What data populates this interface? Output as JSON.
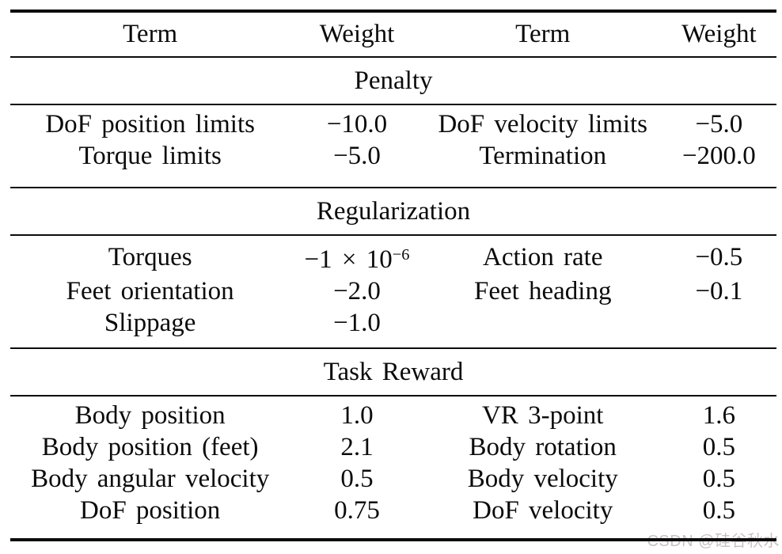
{
  "watermark": {
    "text": "CSDN @硅谷秋水"
  },
  "table": {
    "columns": [
      "Term",
      "Weight",
      "Term",
      "Weight"
    ],
    "sections": [
      {
        "title": "Penalty",
        "rows": [
          [
            "DoF position limits",
            "−10.0",
            "DoF velocity limits",
            "−5.0"
          ],
          [
            "Torque limits",
            "−5.0",
            "Termination",
            "−200.0"
          ]
        ]
      },
      {
        "title": "Regularization",
        "rows": [
          [
            "Torques",
            {
              "text": "−1 × 10",
              "sup": "−6"
            },
            "Action rate",
            "−0.5"
          ],
          [
            "Feet orientation",
            "−2.0",
            "Feet heading",
            "−0.1"
          ],
          [
            "Slippage",
            "−1.0",
            "",
            ""
          ]
        ]
      },
      {
        "title": "Task Reward",
        "rows": [
          [
            "Body position",
            "1.0",
            "VR 3-point",
            "1.6"
          ],
          [
            "Body position (feet)",
            "2.1",
            "Body rotation",
            "0.5"
          ],
          [
            "Body angular velocity",
            "0.5",
            "Body velocity",
            "0.5"
          ],
          [
            "DoF position",
            "0.75",
            "DoF velocity",
            "0.5"
          ]
        ]
      }
    ]
  }
}
